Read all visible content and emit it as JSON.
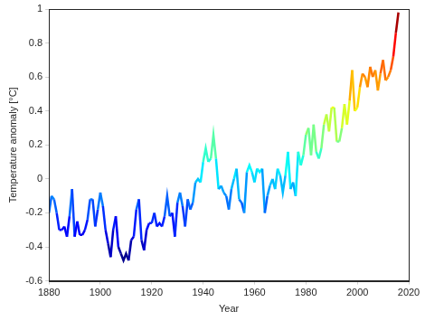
{
  "chart_data": {
    "type": "line",
    "x_label": "Year",
    "y_label": "Temperature anomaly [°C]",
    "x": [
      1880,
      1881,
      1882,
      1883,
      1884,
      1885,
      1886,
      1887,
      1888,
      1889,
      1890,
      1891,
      1892,
      1893,
      1894,
      1895,
      1896,
      1897,
      1898,
      1899,
      1900,
      1901,
      1902,
      1903,
      1904,
      1905,
      1906,
      1907,
      1908,
      1909,
      1910,
      1911,
      1912,
      1913,
      1914,
      1915,
      1916,
      1917,
      1918,
      1919,
      1920,
      1921,
      1922,
      1923,
      1924,
      1925,
      1926,
      1927,
      1928,
      1929,
      1930,
      1931,
      1932,
      1933,
      1934,
      1935,
      1936,
      1937,
      1938,
      1939,
      1940,
      1941,
      1942,
      1943,
      1944,
      1945,
      1946,
      1947,
      1948,
      1949,
      1950,
      1951,
      1952,
      1953,
      1954,
      1955,
      1956,
      1957,
      1958,
      1959,
      1960,
      1961,
      1962,
      1963,
      1964,
      1965,
      1966,
      1967,
      1968,
      1969,
      1970,
      1971,
      1972,
      1973,
      1974,
      1975,
      1976,
      1977,
      1978,
      1979,
      1980,
      1981,
      1982,
      1983,
      1984,
      1985,
      1986,
      1987,
      1988,
      1989,
      1990,
      1991,
      1992,
      1993,
      1994,
      1995,
      1996,
      1997,
      1998,
      1999,
      2000,
      2001,
      2002,
      2003,
      2004,
      2005,
      2006,
      2007,
      2008,
      2009,
      2010,
      2011,
      2012,
      2013,
      2014,
      2015,
      2016
    ],
    "values": [
      -0.2,
      -0.1,
      -0.12,
      -0.2,
      -0.3,
      -0.3,
      -0.28,
      -0.34,
      -0.22,
      -0.06,
      -0.34,
      -0.25,
      -0.33,
      -0.33,
      -0.3,
      -0.24,
      -0.12,
      -0.12,
      -0.28,
      -0.18,
      -0.08,
      -0.16,
      -0.3,
      -0.38,
      -0.46,
      -0.3,
      -0.22,
      -0.4,
      -0.44,
      -0.48,
      -0.44,
      -0.48,
      -0.36,
      -0.34,
      -0.18,
      -0.12,
      -0.36,
      -0.42,
      -0.3,
      -0.26,
      -0.26,
      -0.2,
      -0.28,
      -0.26,
      -0.28,
      -0.22,
      -0.1,
      -0.22,
      -0.2,
      -0.34,
      -0.14,
      -0.08,
      -0.16,
      -0.28,
      -0.12,
      -0.18,
      -0.14,
      -0.02,
      0.0,
      -0.02,
      0.1,
      0.18,
      0.1,
      0.12,
      0.26,
      0.12,
      -0.06,
      -0.04,
      -0.08,
      -0.1,
      -0.18,
      -0.06,
      0.0,
      0.06,
      -0.12,
      -0.14,
      -0.2,
      0.04,
      0.08,
      0.04,
      -0.02,
      0.06,
      0.04,
      0.06,
      -0.2,
      -0.1,
      -0.04,
      0.0,
      -0.06,
      0.06,
      0.02,
      -0.08,
      0.02,
      0.16,
      -0.06,
      -0.02,
      -0.1,
      0.16,
      0.08,
      0.14,
      0.26,
      0.3,
      0.14,
      0.32,
      0.16,
      0.12,
      0.18,
      0.32,
      0.38,
      0.28,
      0.42,
      0.42,
      0.22,
      0.22,
      0.3,
      0.44,
      0.32,
      0.46,
      0.64,
      0.4,
      0.42,
      0.54,
      0.62,
      0.6,
      0.54,
      0.66,
      0.6,
      0.64,
      0.52,
      0.62,
      0.7,
      0.58,
      0.6,
      0.64,
      0.72,
      0.86,
      0.98
    ],
    "xlim": [
      1880,
      2020
    ],
    "xticks": [
      1880,
      1900,
      1920,
      1940,
      1960,
      1980,
      2000,
      2020
    ],
    "ylim": [
      -0.6,
      1
    ],
    "yticks": [
      -0.6,
      -0.4,
      -0.2,
      0,
      0.2,
      0.4,
      0.6,
      0.8,
      1
    ],
    "grid": false
  }
}
